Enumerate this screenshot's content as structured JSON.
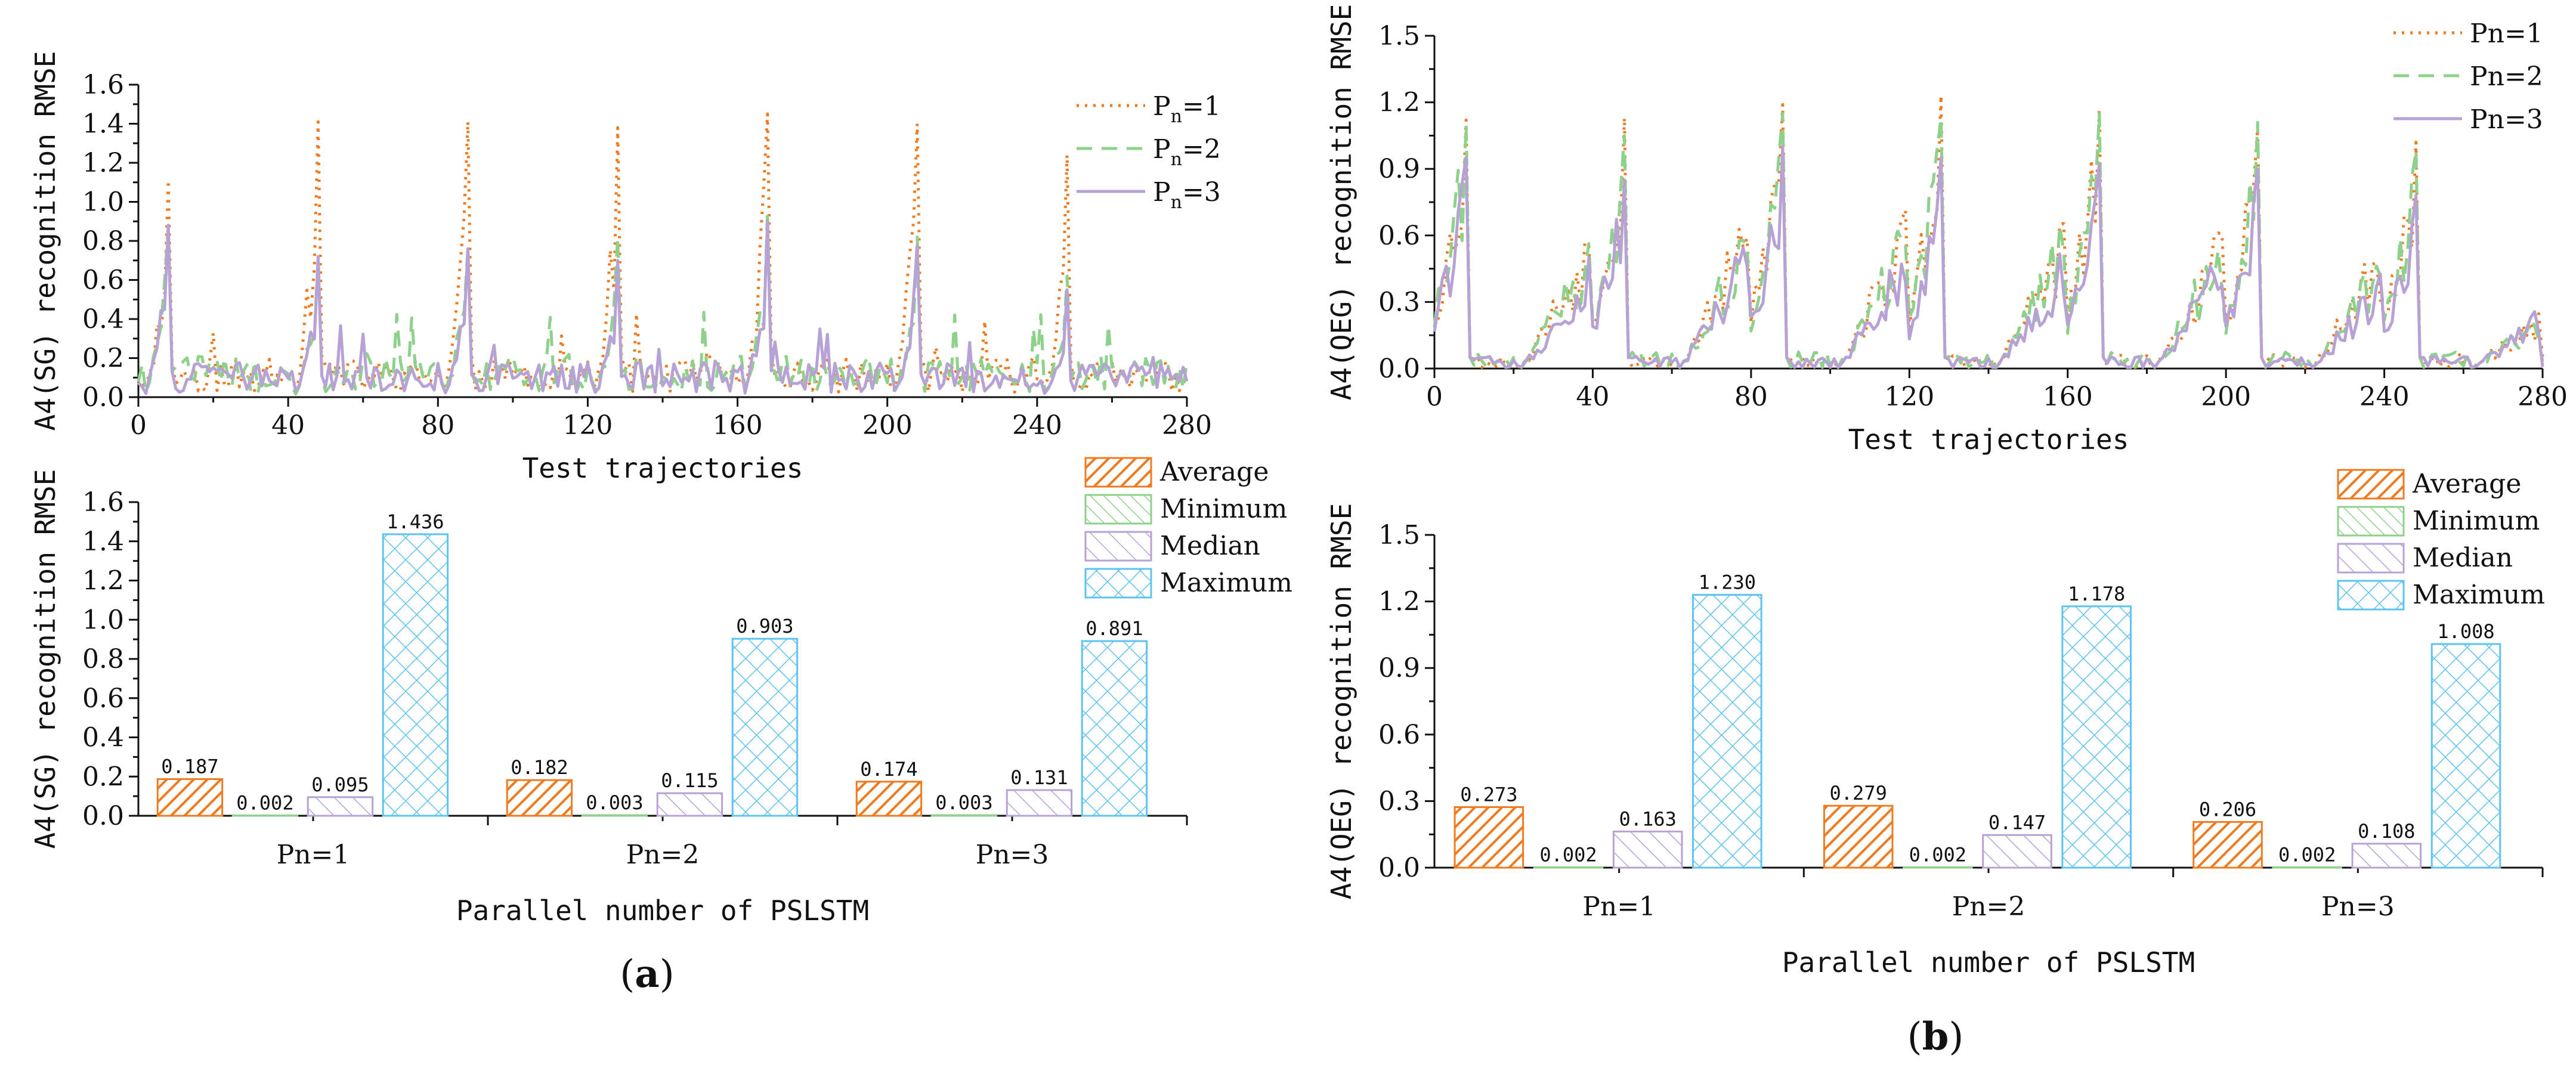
{
  "colors": {
    "pn1": "#F07A1E",
    "pn2": "#8ED18A",
    "pn3": "#B7A2D6",
    "average": "#F07A1E",
    "minimum": "#8ED18A",
    "median": "#B7A2D6",
    "maximum": "#5EC3F0",
    "axis": "#111111"
  },
  "panels": [
    {
      "label": "a",
      "line_chart": {
        "type": "line",
        "xlabel": "Test trajectories",
        "ylabel": "A4(SG) recognition RMSE",
        "xlim": [
          0,
          280
        ],
        "ylim": [
          0,
          1.6
        ],
        "xticks": [
          "0",
          "40",
          "80",
          "120",
          "160",
          "200",
          "240",
          "280"
        ],
        "yticks": [
          "0.0",
          "0.2",
          "0.4",
          "0.6",
          "0.8",
          "1.0",
          "1.2",
          "1.4",
          "1.6"
        ],
        "legend": [
          {
            "series": "Pn=1",
            "main": "P",
            "sub": "n",
            "rest": "=1"
          },
          {
            "series": "Pn=2",
            "main": "P",
            "sub": "n",
            "rest": "=2"
          },
          {
            "series": "Pn=3",
            "main": "P",
            "sub": "n",
            "rest": "=3"
          }
        ],
        "series": [
          {
            "name": "Pn=1",
            "peaks": [
              1.11,
              1.41,
              1.41,
              1.38,
              1.45,
              1.4,
              1.24
            ],
            "base": 0.13
          },
          {
            "name": "Pn=2",
            "peaks": [
              0.88,
              0.72,
              0.77,
              0.82,
              0.95,
              0.82,
              0.62
            ],
            "base": 0.14
          },
          {
            "name": "Pn=3",
            "peaks": [
              0.88,
              0.72,
              0.76,
              0.7,
              0.9,
              0.78,
              0.55
            ],
            "base": 0.12
          }
        ]
      },
      "bar_chart": {
        "type": "bar",
        "xlabel": "Parallel number of PSLSTM",
        "ylabel": "A4(SG) recognition RMSE",
        "ylim": [
          0,
          1.6
        ],
        "yticks": [
          "0.0",
          "0.2",
          "0.4",
          "0.6",
          "0.8",
          "1.0",
          "1.2",
          "1.4",
          "1.6"
        ],
        "categories": [
          "Pn=1",
          "Pn=2",
          "Pn=3"
        ],
        "legend": [
          "Average",
          "Minimum",
          "Median",
          "Maximum"
        ],
        "series": [
          {
            "name": "Average",
            "values": [
              0.187,
              0.182,
              0.174
            ],
            "labels": [
              "0.187",
              "0.182",
              "0.174"
            ]
          },
          {
            "name": "Minimum",
            "values": [
              0.002,
              0.003,
              0.003
            ],
            "labels": [
              "0.002",
              "0.003",
              "0.003"
            ]
          },
          {
            "name": "Median",
            "values": [
              0.095,
              0.115,
              0.131
            ],
            "labels": [
              "0.095",
              "0.115",
              "0.131"
            ]
          },
          {
            "name": "Maximum",
            "values": [
              1.436,
              0.903,
              0.891
            ],
            "labels": [
              "1.436",
              "0.903",
              "0.891"
            ]
          }
        ]
      }
    },
    {
      "label": "b",
      "line_chart": {
        "type": "line",
        "xlabel": "Test trajectories",
        "ylabel": "A4(QEG) recognition RMSE",
        "xlim": [
          0,
          280
        ],
        "ylim": [
          0,
          1.5
        ],
        "xticks": [
          "0",
          "40",
          "80",
          "120",
          "160",
          "200",
          "240",
          "280"
        ],
        "yticks": [
          "0.0",
          "0.3",
          "0.6",
          "0.9",
          "1.2",
          "1.5"
        ],
        "legend": [
          {
            "series": "Pn=1",
            "main": "Pn=1",
            "sub": "",
            "rest": ""
          },
          {
            "series": "Pn=2",
            "main": "Pn=2",
            "sub": "",
            "rest": ""
          },
          {
            "series": "Pn=3",
            "main": "Pn=3",
            "sub": "",
            "rest": ""
          }
        ],
        "series": [
          {
            "name": "Pn=1",
            "peaks": [
              1.12,
              1.13,
              1.19,
              1.23,
              1.17,
              1.08,
              1.02
            ],
            "base": 0.25
          },
          {
            "name": "Pn=2",
            "peaks": [
              1.1,
              1.05,
              1.15,
              1.13,
              1.15,
              1.11,
              0.98
            ],
            "base": 0.3
          },
          {
            "name": "Pn=3",
            "peaks": [
              0.95,
              0.85,
              1.0,
              0.95,
              0.92,
              0.9,
              0.78
            ],
            "base": 0.22
          }
        ]
      },
      "bar_chart": {
        "type": "bar",
        "xlabel": "Parallel number of PSLSTM",
        "ylabel": "A4(QEG) recognition RMSE",
        "ylim": [
          0,
          1.5
        ],
        "yticks": [
          "0.0",
          "0.3",
          "0.6",
          "0.9",
          "1.2",
          "1.5"
        ],
        "categories": [
          "Pn=1",
          "Pn=2",
          "Pn=3"
        ],
        "legend": [
          "Average",
          "Minimum",
          "Median",
          "Maximum"
        ],
        "series": [
          {
            "name": "Average",
            "values": [
              0.273,
              0.279,
              0.206
            ],
            "labels": [
              "0.273",
              "0.279",
              "0.206"
            ]
          },
          {
            "name": "Minimum",
            "values": [
              0.002,
              0.002,
              0.002
            ],
            "labels": [
              "0.002",
              "0.002",
              "0.002"
            ]
          },
          {
            "name": "Median",
            "values": [
              0.163,
              0.147,
              0.108
            ],
            "labels": [
              "0.163",
              "0.147",
              "0.108"
            ]
          },
          {
            "name": "Maximum",
            "values": [
              1.23,
              1.178,
              1.008
            ],
            "labels": [
              "1.230",
              "1.178",
              "1.008"
            ]
          }
        ]
      }
    }
  ],
  "chart_data": [
    {
      "type": "line",
      "title": "(a) top",
      "xlabel": "Test trajectories",
      "ylabel": "A4(SG) recognition RMSE",
      "xlim": [
        0,
        280
      ],
      "ylim": [
        0,
        1.6
      ],
      "peak_x": [
        8,
        48,
        88,
        128,
        168,
        208,
        248
      ],
      "series": [
        {
          "name": "Pn=1",
          "peak_values": [
            1.11,
            1.41,
            1.41,
            1.38,
            1.45,
            1.4,
            1.24
          ]
        },
        {
          "name": "Pn=2",
          "peak_values": [
            0.88,
            0.72,
            0.77,
            0.82,
            0.95,
            0.82,
            0.62
          ]
        },
        {
          "name": "Pn=3",
          "peak_values": [
            0.88,
            0.72,
            0.76,
            0.7,
            0.9,
            0.78,
            0.55
          ]
        }
      ]
    },
    {
      "type": "bar",
      "title": "(a) bottom",
      "xlabel": "Parallel number of PSLSTM",
      "ylabel": "A4(SG) recognition RMSE",
      "ylim": [
        0,
        1.6
      ],
      "categories": [
        "Pn=1",
        "Pn=2",
        "Pn=3"
      ],
      "series": [
        {
          "name": "Average",
          "values": [
            0.187,
            0.182,
            0.174
          ]
        },
        {
          "name": "Minimum",
          "values": [
            0.002,
            0.003,
            0.003
          ]
        },
        {
          "name": "Median",
          "values": [
            0.095,
            0.115,
            0.131
          ]
        },
        {
          "name": "Maximum",
          "values": [
            1.436,
            0.903,
            0.891
          ]
        }
      ]
    },
    {
      "type": "line",
      "title": "(b) top",
      "xlabel": "Test trajectories",
      "ylabel": "A4(QEG) recognition RMSE",
      "xlim": [
        0,
        280
      ],
      "ylim": [
        0,
        1.5
      ],
      "peak_x": [
        8,
        48,
        88,
        128,
        168,
        208,
        248
      ],
      "series": [
        {
          "name": "Pn=1",
          "peak_values": [
            1.12,
            1.13,
            1.19,
            1.23,
            1.17,
            1.08,
            1.02
          ]
        },
        {
          "name": "Pn=2",
          "peak_values": [
            1.1,
            1.05,
            1.15,
            1.13,
            1.15,
            1.11,
            0.98
          ]
        },
        {
          "name": "Pn=3",
          "peak_values": [
            0.95,
            0.85,
            1.0,
            0.95,
            0.92,
            0.9,
            0.78
          ]
        }
      ]
    },
    {
      "type": "bar",
      "title": "(b) bottom",
      "xlabel": "Parallel number of PSLSTM",
      "ylabel": "A4(QEG) recognition RMSE",
      "ylim": [
        0,
        1.5
      ],
      "categories": [
        "Pn=1",
        "Pn=2",
        "Pn=3"
      ],
      "series": [
        {
          "name": "Average",
          "values": [
            0.273,
            0.279,
            0.206
          ]
        },
        {
          "name": "Minimum",
          "values": [
            0.002,
            0.002,
            0.002
          ]
        },
        {
          "name": "Median",
          "values": [
            0.163,
            0.147,
            0.108
          ]
        },
        {
          "name": "Maximum",
          "values": [
            1.23,
            1.178,
            1.008
          ]
        }
      ]
    }
  ]
}
